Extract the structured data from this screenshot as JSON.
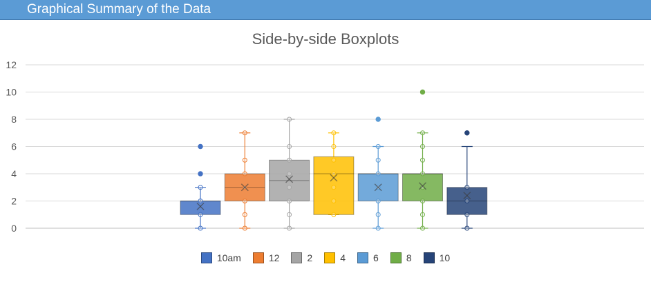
{
  "header": {
    "title": "Graphical Summary of the Data"
  },
  "chart_data": {
    "type": "boxplot",
    "title": "Side-by-side Boxplots",
    "xlabel": "",
    "ylabel": "",
    "ylim": [
      0,
      12
    ],
    "yticks": [
      "0",
      "2",
      "4",
      "6",
      "8",
      "10",
      "12"
    ],
    "grid": true,
    "legend_position": "bottom",
    "series": [
      {
        "name": "10am",
        "color": "#4472c4",
        "min": 0,
        "q1": 1,
        "median": 2,
        "q3": 2,
        "max": 3,
        "mean": 1.6,
        "outliers": [
          4,
          6
        ],
        "points": [
          0,
          1,
          2,
          3,
          4,
          6
        ]
      },
      {
        "name": "12",
        "color": "#ed7d31",
        "min": 0,
        "q1": 2,
        "median": 3,
        "q3": 4,
        "max": 7,
        "mean": 3,
        "outliers": [],
        "points": [
          0,
          1,
          2,
          3,
          4,
          5,
          7
        ]
      },
      {
        "name": "2",
        "color": "#a5a5a5",
        "min": 0,
        "q1": 2,
        "median": 3.5,
        "q3": 5,
        "max": 8,
        "mean": 3.6,
        "outliers": [],
        "points": [
          0,
          1,
          2,
          3,
          4,
          5,
          6,
          8
        ]
      },
      {
        "name": "4",
        "color": "#ffc000",
        "min": 1,
        "q1": 1,
        "median": 4,
        "q3": 5.25,
        "max": 7,
        "mean": 3.7,
        "outliers": [],
        "points": [
          1,
          2,
          3,
          4,
          5,
          6,
          7
        ]
      },
      {
        "name": "6",
        "color": "#5b9bd5",
        "min": 0,
        "q1": 2,
        "median": 4,
        "q3": 4,
        "max": 6,
        "mean": 3,
        "outliers": [
          8
        ],
        "points": [
          0,
          1,
          2,
          3,
          4,
          5,
          6,
          8
        ]
      },
      {
        "name": "8",
        "color": "#70ad47",
        "min": 0,
        "q1": 2,
        "median": 4,
        "q3": 4,
        "max": 7,
        "mean": 3.1,
        "outliers": [
          10
        ],
        "points": [
          0,
          1,
          2,
          3,
          4,
          5,
          6,
          7,
          10
        ]
      },
      {
        "name": "10",
        "color": "#264478",
        "min": 0,
        "q1": 1,
        "median": 2,
        "q3": 3,
        "max": 6,
        "mean": 2.4,
        "outliers": [
          7
        ],
        "points": [
          0,
          1,
          2,
          3,
          7
        ]
      }
    ]
  }
}
